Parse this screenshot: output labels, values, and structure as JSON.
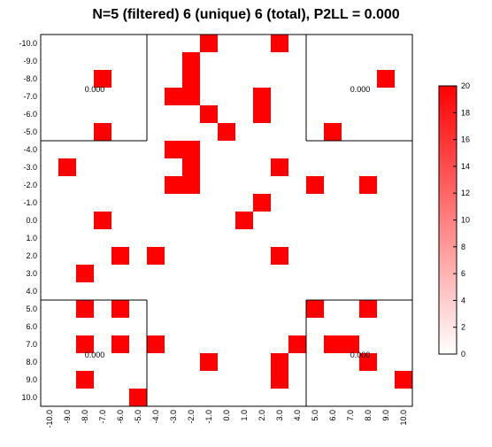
{
  "chart_data": {
    "type": "heatmap",
    "title": "N=5 (filtered) 6 (unique) 6 (total), P2LL = 0.000",
    "x_ticks": [
      "-10.0",
      "-9.0",
      "-8.0",
      "-7.0",
      "-6.0",
      "-5.0",
      "-4.0",
      "-3.0",
      "-2.0",
      "-1.0",
      "0.0",
      "1.0",
      "2.0",
      "3.0",
      "4.0",
      "5.0",
      "6.0",
      "7.0",
      "8.0",
      "9.0",
      "10.0"
    ],
    "y_ticks": [
      "-10.0",
      "-9.0",
      "-8.0",
      "-7.0",
      "-6.0",
      "-5.0",
      "-4.0",
      "-3.0",
      "-2.0",
      "-1.0",
      "0.0",
      "1.0",
      "2.0",
      "3.0",
      "4.0",
      "5.0",
      "6.0",
      "7.0",
      "8.0",
      "9.0",
      "10.0"
    ],
    "cell_color": "#ff0000",
    "cells": [
      {
        "x": -1,
        "y": -10,
        "v": 20
      },
      {
        "x": 3,
        "y": -10,
        "v": 20
      },
      {
        "x": -2,
        "y": -9,
        "v": 20
      },
      {
        "x": -7,
        "y": -8,
        "v": 20
      },
      {
        "x": -2,
        "y": -8,
        "v": 20
      },
      {
        "x": 9,
        "y": -8,
        "v": 20
      },
      {
        "x": -3,
        "y": -7,
        "v": 20
      },
      {
        "x": -2,
        "y": -7,
        "v": 20
      },
      {
        "x": 2,
        "y": -7,
        "v": 20
      },
      {
        "x": -1,
        "y": -6,
        "v": 20
      },
      {
        "x": 2,
        "y": -6,
        "v": 20
      },
      {
        "x": -7,
        "y": -5,
        "v": 20
      },
      {
        "x": 0,
        "y": -5,
        "v": 20
      },
      {
        "x": 6,
        "y": -5,
        "v": 20
      },
      {
        "x": -3,
        "y": -4,
        "v": 20
      },
      {
        "x": -2,
        "y": -4,
        "v": 20
      },
      {
        "x": -9,
        "y": -3,
        "v": 20
      },
      {
        "x": -2,
        "y": -3,
        "v": 20
      },
      {
        "x": 3,
        "y": -3,
        "v": 20
      },
      {
        "x": -3,
        "y": -2,
        "v": 20
      },
      {
        "x": -2,
        "y": -2,
        "v": 20
      },
      {
        "x": 5,
        "y": -2,
        "v": 20
      },
      {
        "x": 8,
        "y": -2,
        "v": 20
      },
      {
        "x": 2,
        "y": -1,
        "v": 20
      },
      {
        "x": -7,
        "y": 0,
        "v": 20
      },
      {
        "x": 1,
        "y": 0,
        "v": 20
      },
      {
        "x": -6,
        "y": 2,
        "v": 20
      },
      {
        "x": -4,
        "y": 2,
        "v": 20
      },
      {
        "x": 3,
        "y": 2,
        "v": 20
      },
      {
        "x": -8,
        "y": 3,
        "v": 20
      },
      {
        "x": -8,
        "y": 5,
        "v": 20
      },
      {
        "x": -6,
        "y": 5,
        "v": 20
      },
      {
        "x": 5,
        "y": 5,
        "v": 20
      },
      {
        "x": 8,
        "y": 5,
        "v": 20
      },
      {
        "x": -8,
        "y": 7,
        "v": 20
      },
      {
        "x": -6,
        "y": 7,
        "v": 20
      },
      {
        "x": -4,
        "y": 7,
        "v": 20
      },
      {
        "x": 4,
        "y": 7,
        "v": 20
      },
      {
        "x": 6,
        "y": 7,
        "v": 20
      },
      {
        "x": 7,
        "y": 7,
        "v": 20
      },
      {
        "x": -1,
        "y": 8,
        "v": 20
      },
      {
        "x": 3,
        "y": 8,
        "v": 20
      },
      {
        "x": 8,
        "y": 8,
        "v": 20
      },
      {
        "x": -8,
        "y": 9,
        "v": 20
      },
      {
        "x": 3,
        "y": 9,
        "v": 20
      },
      {
        "x": 10,
        "y": 9,
        "v": 20
      },
      {
        "x": -5,
        "y": 10,
        "v": 20
      }
    ],
    "quadrant_labels": [
      "0.000",
      "0.000",
      "0.000",
      "0.000"
    ],
    "colorbar": {
      "min": 0,
      "max": 20,
      "ticks": [
        "0",
        "2",
        "4",
        "6",
        "8",
        "10",
        "12",
        "14",
        "16",
        "18",
        "20"
      ],
      "low_color": "#ffffff",
      "high_color": "#ff0000"
    },
    "grid": false
  }
}
